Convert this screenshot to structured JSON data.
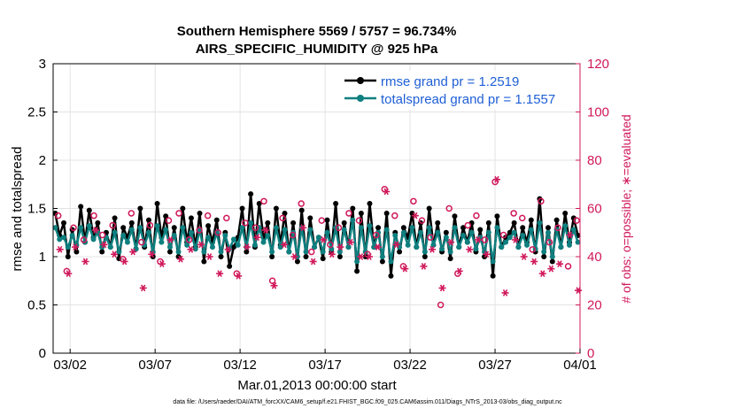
{
  "title_line1": "Southern Hemisphere 5569 / 5757 = 96.734%",
  "title_line2": "AIRS_SPECIFIC_HUMIDITY @ 925 hPa",
  "footer": "data file: /Users/raeder/DAI/ATM_forcXX/CAM6_setup/f.e21.FHIST_BGC.f09_025.CAM6assim.011/Diags_NTrS_2013-03/obs_diag_output.nc",
  "colors": {
    "rmse": "#000000",
    "spread": "#0f7f7f",
    "obs": "#d0185a",
    "legend_text": "#1f5fd6"
  },
  "chart_data": {
    "type": "line",
    "xlabel": "Mar.01,2013 00:00:00 start",
    "ylabel": "rmse and totalspread",
    "ylabel_right": "# of obs: o=possible; ∗=evaluated",
    "xlim": [
      0,
      31
    ],
    "ylim": [
      0,
      3
    ],
    "ylim_right": [
      0,
      120
    ],
    "x_ticks": [
      1,
      6,
      11,
      16,
      21,
      26,
      31
    ],
    "x_tick_labels": [
      "03/02",
      "03/07",
      "03/12",
      "03/17",
      "03/22",
      "03/27",
      "04/01"
    ],
    "y_ticks": [
      0,
      0.5,
      1,
      1.5,
      2,
      2.5,
      3
    ],
    "y_tick_labels": [
      "0",
      "0.5",
      "1",
      "1.5",
      "2",
      "2.5",
      "3"
    ],
    "y_ticks_right": [
      0,
      20,
      40,
      60,
      80,
      100,
      120
    ],
    "y_tick_labels_right": [
      "0",
      "20",
      "40",
      "60",
      "80",
      "100",
      "120"
    ],
    "grid": true,
    "legend": [
      "rmse grand pr = 1.2519",
      "totalspread grand pr = 1.1557"
    ],
    "series": [
      {
        "name": "rmse",
        "x": [
          0.125,
          0.375,
          0.625,
          0.875,
          1.125,
          1.375,
          1.625,
          1.875,
          2.125,
          2.375,
          2.625,
          2.875,
          3.125,
          3.375,
          3.625,
          3.875,
          4.125,
          4.375,
          4.625,
          4.875,
          5.125,
          5.375,
          5.625,
          5.875,
          6.125,
          6.375,
          6.625,
          6.875,
          7.125,
          7.375,
          7.625,
          7.875,
          8.125,
          8.375,
          8.625,
          8.875,
          9.125,
          9.375,
          9.625,
          9.875,
          10.125,
          10.375,
          10.625,
          10.875,
          11.125,
          11.375,
          11.625,
          11.875,
          12.125,
          12.375,
          12.625,
          12.875,
          13.125,
          13.375,
          13.625,
          13.875,
          14.125,
          14.375,
          14.625,
          14.875,
          15.125,
          15.375,
          15.625,
          15.875,
          16.125,
          16.375,
          16.625,
          16.875,
          17.125,
          17.375,
          17.625,
          17.875,
          18.125,
          18.375,
          18.625,
          18.875,
          19.125,
          19.375,
          19.625,
          19.875,
          20.125,
          20.375,
          20.625,
          20.875,
          21.125,
          21.375,
          21.625,
          21.875,
          22.125,
          22.375,
          22.625,
          22.875,
          23.125,
          23.375,
          23.625,
          23.875,
          24.125,
          24.375,
          24.625,
          24.875,
          25.125,
          25.375,
          25.625,
          25.875,
          26.125,
          26.375,
          26.625,
          26.875,
          27.125,
          27.375,
          27.625,
          27.875,
          28.125,
          28.375,
          28.625,
          28.875,
          29.125,
          29.375,
          29.625,
          29.875,
          30.125,
          30.375,
          30.625,
          30.875
        ],
        "values": [
          1.45,
          1.22,
          1.35,
          1.0,
          1.28,
          1.05,
          1.52,
          1.15,
          1.48,
          1.2,
          1.35,
          1.05,
          1.25,
          1.1,
          1.4,
          0.98,
          1.3,
          1.2,
          1.35,
          1.08,
          1.5,
          1.1,
          1.38,
          1.0,
          1.55,
          1.2,
          1.42,
          1.05,
          1.3,
          1.0,
          1.5,
          1.15,
          1.4,
          1.1,
          1.45,
          0.95,
          1.32,
          1.15,
          1.38,
          1.0,
          1.25,
          0.9,
          1.1,
          1.2,
          1.5,
          1.05,
          1.65,
          1.1,
          1.55,
          1.2,
          1.35,
          1.0,
          1.5,
          1.12,
          1.45,
          1.05,
          1.35,
          0.95,
          1.48,
          1.0,
          1.4,
          1.1,
          1.2,
          0.98,
          1.38,
          1.05,
          1.55,
          1.0,
          1.35,
          1.1,
          1.5,
          0.85,
          1.45,
          1.0,
          1.55,
          1.1,
          1.3,
          0.95,
          1.45,
          0.8,
          1.25,
          1.05,
          1.3,
          1.2,
          1.45,
          1.1,
          1.35,
          1.0,
          1.5,
          1.12,
          1.35,
          1.05,
          1.25,
          0.98,
          1.42,
          1.1,
          1.3,
          1.15,
          1.35,
          1.05,
          1.28,
          1.0,
          1.35,
          0.8,
          1.42,
          1.1,
          1.2,
          1.25,
          1.35,
          1.1,
          1.3,
          1.15,
          1.38,
          1.05,
          1.6,
          1.0,
          1.3,
          0.95,
          1.38,
          1.1,
          1.45,
          1.15,
          1.4,
          1.22
        ]
      },
      {
        "name": "totalspread",
        "x": [
          0.125,
          0.375,
          0.625,
          0.875,
          1.125,
          1.375,
          1.625,
          1.875,
          2.125,
          2.375,
          2.625,
          2.875,
          3.125,
          3.375,
          3.625,
          3.875,
          4.125,
          4.375,
          4.625,
          4.875,
          5.125,
          5.375,
          5.625,
          5.875,
          6.125,
          6.375,
          6.625,
          6.875,
          7.125,
          7.375,
          7.625,
          7.875,
          8.125,
          8.375,
          8.625,
          8.875,
          9.125,
          9.375,
          9.625,
          9.875,
          10.125,
          10.375,
          10.625,
          10.875,
          11.125,
          11.375,
          11.625,
          11.875,
          12.125,
          12.375,
          12.625,
          12.875,
          13.125,
          13.375,
          13.625,
          13.875,
          14.125,
          14.375,
          14.625,
          14.875,
          15.125,
          15.375,
          15.625,
          15.875,
          16.125,
          16.375,
          16.625,
          16.875,
          17.125,
          17.375,
          17.625,
          17.875,
          18.125,
          18.375,
          18.625,
          18.875,
          19.125,
          19.375,
          19.625,
          19.875,
          20.125,
          20.375,
          20.625,
          20.875,
          21.125,
          21.375,
          21.625,
          21.875,
          22.125,
          22.375,
          22.625,
          22.875,
          23.125,
          23.375,
          23.625,
          23.875,
          24.125,
          24.375,
          24.625,
          24.875,
          25.125,
          25.375,
          25.625,
          25.875,
          26.125,
          26.375,
          26.625,
          26.875,
          27.125,
          27.375,
          27.625,
          27.875,
          28.125,
          28.375,
          28.625,
          28.875,
          29.125,
          29.375,
          29.625,
          29.875,
          30.125,
          30.375,
          30.625,
          30.875
        ],
        "values": [
          1.3,
          1.18,
          1.2,
          1.1,
          1.22,
          1.12,
          1.3,
          1.15,
          1.32,
          1.18,
          1.25,
          1.1,
          1.2,
          1.1,
          1.25,
          1.05,
          1.22,
          1.15,
          1.28,
          1.08,
          1.3,
          1.12,
          1.25,
          1.05,
          1.32,
          1.15,
          1.28,
          1.1,
          1.22,
          1.05,
          1.3,
          1.12,
          1.25,
          1.08,
          1.28,
          1.05,
          1.2,
          1.1,
          1.25,
          1.05,
          1.22,
          1.08,
          1.18,
          1.12,
          1.3,
          1.1,
          1.35,
          1.12,
          1.3,
          1.15,
          1.22,
          1.05,
          1.3,
          1.1,
          1.28,
          1.05,
          1.25,
          1.0,
          1.3,
          1.05,
          1.28,
          1.1,
          1.2,
          1.05,
          1.25,
          1.08,
          1.3,
          1.05,
          1.28,
          1.1,
          1.38,
          0.95,
          1.3,
          1.05,
          1.32,
          1.1,
          1.25,
          1.0,
          1.28,
          0.95,
          1.22,
          1.1,
          1.25,
          1.12,
          1.3,
          1.1,
          1.25,
          1.05,
          1.3,
          1.12,
          1.25,
          1.08,
          1.2,
          1.05,
          1.3,
          1.1,
          1.22,
          1.15,
          1.25,
          1.08,
          1.2,
          1.05,
          1.25,
          0.95,
          1.3,
          1.1,
          1.15,
          1.2,
          1.25,
          1.1,
          1.22,
          1.12,
          1.28,
          1.08,
          1.35,
          1.05,
          1.25,
          1.0,
          1.28,
          1.1,
          1.32,
          1.12,
          1.28,
          1.15
        ]
      },
      {
        "name": "obs possible",
        "axis": "right",
        "x": [
          0.3,
          0.8,
          1.2,
          1.8,
          2.4,
          2.9,
          3.5,
          4.1,
          4.6,
          5.2,
          5.7,
          6.3,
          6.8,
          7.4,
          8.0,
          8.6,
          9.1,
          9.7,
          10.2,
          10.8,
          11.3,
          11.9,
          12.4,
          12.9,
          13.5,
          14.1,
          14.6,
          15.2,
          15.8,
          16.3,
          16.8,
          17.4,
          18.0,
          18.5,
          19.0,
          19.5,
          20.1,
          20.6,
          21.2,
          21.7,
          22.2,
          22.8,
          23.3,
          23.8,
          24.4,
          24.9,
          25.4,
          26.0,
          26.5,
          27.1,
          27.6,
          28.2,
          28.7,
          29.2,
          29.7,
          30.3,
          30.8
        ],
        "values": [
          57,
          34,
          52,
          47,
          57,
          49,
          53,
          39,
          58,
          46,
          53,
          38,
          55,
          58,
          47,
          51,
          57,
          50,
          56,
          33,
          54,
          52,
          63,
          30,
          56,
          49,
          62,
          42,
          55,
          45,
          52,
          58,
          55,
          41,
          49,
          68,
          57,
          36,
          63,
          55,
          48,
          20,
          60,
          33,
          53,
          57,
          47,
          71,
          49,
          58,
          56,
          43,
          63,
          46,
          52,
          36,
          55
        ]
      },
      {
        "name": "obs evaluated",
        "axis": "right",
        "x": [
          0.4,
          0.9,
          1.3,
          1.9,
          2.5,
          3.0,
          3.6,
          4.2,
          4.7,
          5.3,
          5.8,
          6.4,
          6.9,
          7.5,
          8.1,
          8.7,
          9.2,
          9.8,
          10.3,
          10.9,
          11.4,
          12.0,
          12.5,
          13.0,
          13.6,
          14.2,
          14.7,
          15.3,
          15.9,
          16.4,
          16.9,
          17.5,
          18.1,
          18.6,
          19.1,
          19.6,
          20.2,
          20.7,
          21.3,
          21.8,
          22.3,
          22.9,
          23.4,
          23.9,
          24.5,
          25.0,
          25.5,
          26.1,
          26.6,
          27.2,
          27.7,
          28.3,
          28.8,
          29.3,
          29.8,
          30.4,
          30.9
        ],
        "values": [
          43,
          33,
          44,
          38,
          51,
          45,
          41,
          38,
          42,
          27,
          41,
          37,
          47,
          39,
          43,
          45,
          40,
          33,
          43,
          32,
          44,
          48,
          51,
          28,
          45,
          40,
          52,
          38,
          47,
          41,
          44,
          46,
          40,
          40,
          44,
          67,
          45,
          35,
          57,
          36,
          43,
          27,
          46,
          34,
          43,
          47,
          41,
          72,
          25,
          47,
          40,
          38,
          33,
          35,
          37,
          49,
          26
        ]
      }
    ]
  }
}
